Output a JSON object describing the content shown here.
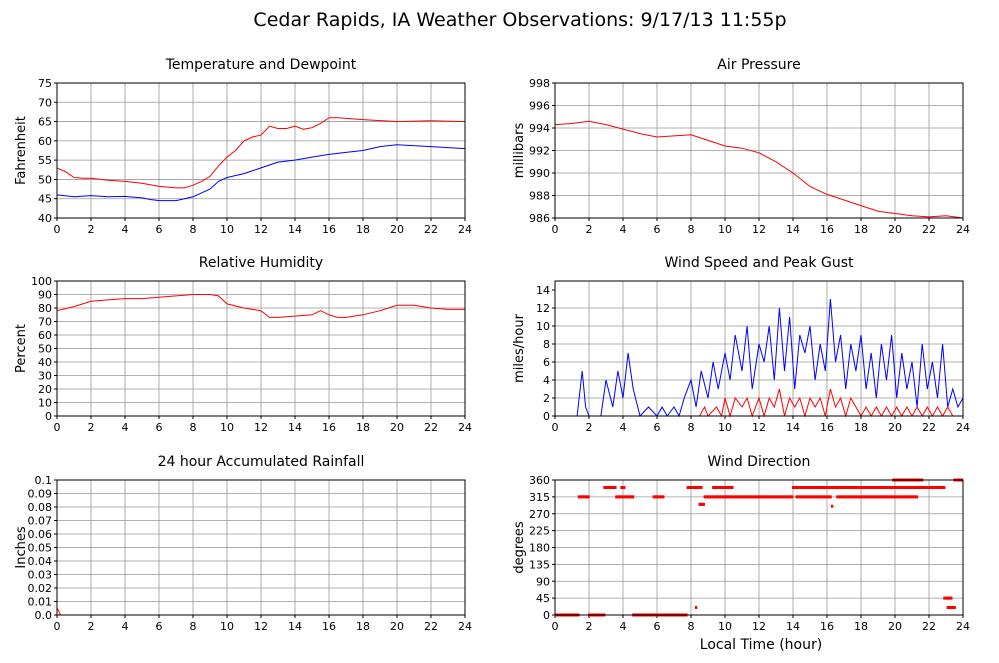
{
  "title": "Cedar Rapids, IA Weather Observations: 9/17/13 11:55p",
  "xlabel": "Local Time (hour)",
  "colors": {
    "red": "#ff0000",
    "blue": "#0000ff",
    "grid": "#999999"
  },
  "chart_data": [
    {
      "id": "temp",
      "type": "line",
      "title": "Temperature and Dewpoint",
      "ylabel": "Fahrenheit",
      "xlim": [
        0,
        24
      ],
      "ylim": [
        40,
        75
      ],
      "x_ticks": [
        0,
        2,
        4,
        6,
        8,
        10,
        12,
        14,
        16,
        18,
        20,
        22,
        24
      ],
      "y_ticks": [
        40,
        45,
        50,
        55,
        60,
        65,
        70,
        75
      ],
      "grid": true,
      "series": [
        {
          "color": "#ff0000",
          "x": [
            0,
            0.5,
            1,
            1.5,
            2,
            3,
            4,
            5,
            6,
            7,
            7.5,
            8,
            8.5,
            9,
            9.5,
            10,
            10.5,
            11,
            11.5,
            12,
            12.5,
            13,
            13.5,
            14,
            14.5,
            15,
            15.5,
            16,
            16.5,
            18,
            20,
            22,
            24
          ],
          "y": [
            53,
            52,
            50.5,
            50.3,
            50.3,
            49.8,
            49.5,
            49,
            48.2,
            47.8,
            47.8,
            48.5,
            49.5,
            50.8,
            53.5,
            55.8,
            57.5,
            60,
            61,
            61.5,
            63.8,
            63.2,
            63.2,
            63.8,
            63,
            63.4,
            64.5,
            66,
            66,
            65.5,
            65,
            65.2,
            65
          ]
        },
        {
          "color": "#0000ff",
          "x": [
            0,
            1,
            2,
            3,
            4,
            5,
            5.5,
            6,
            7,
            7.5,
            8,
            8.5,
            9,
            9.5,
            10,
            11,
            12,
            13,
            14,
            15,
            16,
            17,
            18,
            19,
            20,
            22,
            24
          ],
          "y": [
            46,
            45.5,
            45.8,
            45.5,
            45.6,
            45.2,
            44.8,
            44.5,
            44.5,
            45,
            45.5,
            46.5,
            47.5,
            49.5,
            50.5,
            51.5,
            53,
            54.5,
            55,
            55.8,
            56.5,
            57,
            57.5,
            58.5,
            59,
            58.5,
            58
          ]
        }
      ]
    },
    {
      "id": "pressure",
      "type": "line",
      "title": "Air Pressure",
      "ylabel": "millibars",
      "xlim": [
        0,
        24
      ],
      "ylim": [
        986,
        998
      ],
      "x_ticks": [
        0,
        2,
        4,
        6,
        8,
        10,
        12,
        14,
        16,
        18,
        20,
        22,
        24
      ],
      "y_ticks": [
        986,
        988,
        990,
        992,
        994,
        996,
        998
      ],
      "grid": true,
      "series": [
        {
          "color": "#ff0000",
          "x": [
            0,
            1,
            2,
            3,
            4,
            5,
            6,
            7,
            8,
            9,
            10,
            11,
            12,
            13,
            14,
            15,
            16,
            17,
            18,
            19,
            20,
            21,
            22,
            23,
            24
          ],
          "y": [
            994.3,
            994.4,
            994.6,
            994.3,
            993.9,
            993.5,
            993.2,
            993.3,
            993.4,
            992.9,
            992.4,
            992.2,
            991.8,
            991,
            990,
            988.8,
            988.1,
            987.6,
            987.1,
            986.6,
            986.4,
            986.2,
            986.1,
            986.2,
            986
          ]
        }
      ]
    },
    {
      "id": "humidity",
      "type": "line",
      "title": "Relative Humidity",
      "ylabel": "Percent",
      "xlim": [
        0,
        24
      ],
      "ylim": [
        0,
        100
      ],
      "x_ticks": [
        0,
        2,
        4,
        6,
        8,
        10,
        12,
        14,
        16,
        18,
        20,
        22,
        24
      ],
      "y_ticks": [
        0,
        10,
        20,
        30,
        40,
        50,
        60,
        70,
        80,
        90,
        100
      ],
      "grid": true,
      "series": [
        {
          "color": "#ff0000",
          "x": [
            0,
            1,
            2,
            3,
            4,
            5,
            6,
            7,
            8,
            9,
            9.5,
            10,
            11,
            12,
            12.5,
            13,
            14,
            15,
            15.5,
            16,
            16.5,
            17,
            18,
            19,
            20,
            21,
            22,
            23,
            24
          ],
          "y": [
            78,
            81,
            85,
            86,
            87,
            87,
            88,
            89,
            90,
            90,
            89,
            83,
            80,
            78,
            73,
            73,
            74,
            75,
            78,
            75,
            73,
            73,
            75,
            78,
            82,
            82,
            80,
            79,
            79
          ]
        }
      ]
    },
    {
      "id": "wind",
      "type": "line",
      "title": "Wind Speed and Peak Gust",
      "ylabel": "miles/hour",
      "xlim": [
        0,
        24
      ],
      "ylim": [
        0,
        15
      ],
      "x_ticks": [
        0,
        2,
        4,
        6,
        8,
        10,
        12,
        14,
        16,
        18,
        20,
        22,
        24
      ],
      "y_ticks": [
        0,
        2,
        4,
        6,
        8,
        10,
        12,
        14
      ],
      "grid": true,
      "series": [
        {
          "color": "#0000ff",
          "x": [
            0,
            1.3,
            1.6,
            1.8,
            2,
            2.7,
            3,
            3.4,
            3.7,
            4,
            4.3,
            4.6,
            5,
            5.5,
            6,
            6.3,
            6.6,
            7,
            7.3,
            7.6,
            8,
            8.3,
            8.6,
            9,
            9.3,
            9.6,
            10,
            10.3,
            10.6,
            11,
            11.3,
            11.6,
            12,
            12.3,
            12.6,
            12.9,
            13.2,
            13.5,
            13.8,
            14.1,
            14.4,
            14.7,
            15,
            15.3,
            15.6,
            15.9,
            16.2,
            16.5,
            16.8,
            17.1,
            17.4,
            17.7,
            18,
            18.3,
            18.6,
            18.9,
            19.2,
            19.5,
            19.8,
            20.1,
            20.4,
            20.7,
            21,
            21.3,
            21.6,
            21.9,
            22.2,
            22.5,
            22.8,
            23.1,
            23.4,
            23.7,
            24
          ],
          "y": [
            0,
            0,
            5,
            1,
            0,
            0,
            4,
            1,
            5,
            2,
            7,
            3,
            0,
            1,
            0,
            1,
            0,
            1,
            0,
            2,
            4,
            1,
            5,
            2,
            6,
            3,
            7,
            4,
            9,
            5,
            10,
            3,
            8,
            6,
            10,
            4,
            12,
            5,
            11,
            3,
            9,
            7,
            10,
            4,
            8,
            5,
            13,
            6,
            9,
            3,
            8,
            5,
            9,
            3,
            7,
            2,
            8,
            4,
            9,
            2,
            7,
            3,
            6,
            1,
            8,
            3,
            6,
            2,
            8,
            1,
            3,
            1,
            2
          ]
        },
        {
          "color": "#ff0000",
          "x": [
            0,
            8.5,
            8.8,
            9,
            9.5,
            9.8,
            10,
            10.3,
            10.6,
            11,
            11.3,
            11.6,
            12,
            12.3,
            12.6,
            12.9,
            13.2,
            13.5,
            13.8,
            14.1,
            14.4,
            14.7,
            15,
            15.3,
            15.6,
            15.9,
            16.2,
            16.5,
            16.8,
            17.1,
            17.4,
            17.7,
            18,
            18.3,
            18.6,
            18.9,
            19.2,
            19.5,
            19.8,
            20.1,
            20.4,
            20.7,
            21,
            21.3,
            21.6,
            21.9,
            22.2,
            22.5,
            22.8,
            23.1,
            23.4,
            24
          ],
          "y": [
            0,
            0,
            1,
            0,
            1,
            0,
            2,
            0,
            2,
            1,
            2,
            0,
            2,
            0,
            2,
            1,
            3,
            0,
            2,
            1,
            2,
            0,
            2,
            1,
            2,
            0,
            3,
            1,
            2,
            0,
            2,
            1,
            0,
            1,
            0,
            1,
            0,
            1,
            0,
            1,
            0,
            1,
            0,
            1,
            0,
            1,
            0,
            1,
            0,
            1,
            0,
            0
          ]
        }
      ]
    },
    {
      "id": "rain",
      "type": "line",
      "title": "24 hour Accumulated Rainfall",
      "ylabel": "Inches",
      "xlim": [
        0,
        24
      ],
      "ylim": [
        0,
        0.1
      ],
      "x_ticks": [
        0,
        2,
        4,
        6,
        8,
        10,
        12,
        14,
        16,
        18,
        20,
        22,
        24
      ],
      "y_ticks": [
        "0.0",
        "0.01",
        "0.02",
        "0.03",
        "0.04",
        "0.05",
        "0.06",
        "0.07",
        "0.08",
        "0.09",
        "0.1"
      ],
      "grid": true,
      "series": [
        {
          "color": "#ff0000",
          "x": [
            0,
            0.1,
            0.2,
            24
          ],
          "y": [
            0.005,
            0.003,
            0,
            0
          ]
        }
      ]
    },
    {
      "id": "direction",
      "type": "scatter",
      "title": "Wind Direction",
      "ylabel": "degrees",
      "xlim": [
        0,
        24
      ],
      "ylim": [
        0,
        360
      ],
      "x_ticks": [
        0,
        2,
        4,
        6,
        8,
        10,
        12,
        14,
        16,
        18,
        20,
        22,
        24
      ],
      "y_ticks": [
        0,
        45,
        90,
        135,
        180,
        225,
        270,
        315,
        360
      ],
      "grid": true,
      "series": [
        {
          "color": "#ff0000",
          "segments": [
            {
              "from": 0,
              "to": 1.4,
              "y": 0
            },
            {
              "from": 1.4,
              "to": 2,
              "y": 315
            },
            {
              "from": 2,
              "to": 2.9,
              "y": 0
            },
            {
              "from": 2.9,
              "to": 3.6,
              "y": 340
            },
            {
              "from": 3.6,
              "to": 4,
              "y": 315
            },
            {
              "from": 3.9,
              "to": 4.1,
              "y": 340
            },
            {
              "from": 4.1,
              "to": 4.6,
              "y": 315
            },
            {
              "from": 4.6,
              "to": 7.8,
              "y": 0
            },
            {
              "from": 5.8,
              "to": 6.4,
              "y": 315
            },
            {
              "from": 7.8,
              "to": 8.6,
              "y": 340
            },
            {
              "from": 8.5,
              "to": 8.8,
              "y": 295
            },
            {
              "from": 8.8,
              "to": 10.1,
              "y": 315
            },
            {
              "from": 9.3,
              "to": 10.5,
              "y": 340
            },
            {
              "from": 10.1,
              "to": 14,
              "y": 315
            },
            {
              "from": 14,
              "to": 16,
              "y": 340
            },
            {
              "from": 14.2,
              "to": 16.2,
              "y": 315
            },
            {
              "from": 16,
              "to": 19,
              "y": 340
            },
            {
              "from": 16.6,
              "to": 20.3,
              "y": 315
            },
            {
              "from": 18.8,
              "to": 22.9,
              "y": 340
            },
            {
              "from": 19.9,
              "to": 21.6,
              "y": 360
            },
            {
              "from": 20.4,
              "to": 21.3,
              "y": 315
            },
            {
              "from": 22.9,
              "to": 23.3,
              "y": 45
            },
            {
              "from": 23.1,
              "to": 23.5,
              "y": 20
            },
            {
              "from": 23.5,
              "to": 24,
              "y": 360
            }
          ],
          "points": [
            [
              8.3,
              20
            ],
            [
              16.3,
              290
            ]
          ]
        }
      ]
    }
  ]
}
